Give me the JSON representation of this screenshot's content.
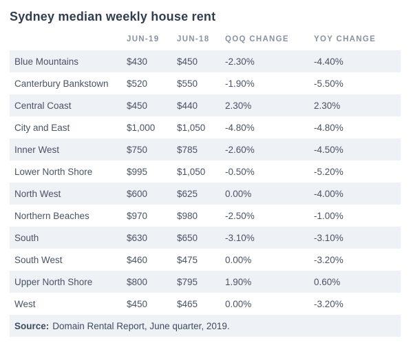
{
  "title": "Sydney median weekly house rent",
  "chart_data": {
    "type": "table",
    "title": "Sydney median weekly house rent",
    "columns": {
      "region": "",
      "jun19": "JUN-19",
      "jun18": "JUN-18",
      "qoq": "QOQ CHANGE",
      "yoy": "YOY CHANGE"
    },
    "rows": [
      {
        "region": "Blue Mountains",
        "jun19": "$430",
        "jun18": "$450",
        "qoq": "-2.30%",
        "yoy": "-4.40%"
      },
      {
        "region": "Canterbury Bankstown",
        "jun19": "$520",
        "jun18": "$550",
        "qoq": "-1.90%",
        "yoy": "-5.50%"
      },
      {
        "region": "Central Coast",
        "jun19": "$450",
        "jun18": "$440",
        "qoq": "2.30%",
        "yoy": "2.30%"
      },
      {
        "region": "City and East",
        "jun19": "$1,000",
        "jun18": "$1,050",
        "qoq": "-4.80%",
        "yoy": "-4.80%"
      },
      {
        "region": "Inner West",
        "jun19": "$750",
        "jun18": "$785",
        "qoq": "-2.60%",
        "yoy": "-4.50%"
      },
      {
        "region": "Lower North Shore",
        "jun19": "$995",
        "jun18": "$1,050",
        "qoq": "-0.50%",
        "yoy": "-5.20%"
      },
      {
        "region": "North West",
        "jun19": "$600",
        "jun18": "$625",
        "qoq": "0.00%",
        "yoy": "-4.00%"
      },
      {
        "region": "Northern Beaches",
        "jun19": "$970",
        "jun18": "$980",
        "qoq": "-2.50%",
        "yoy": "-1.00%"
      },
      {
        "region": "South",
        "jun19": "$630",
        "jun18": "$650",
        "qoq": "-3.10%",
        "yoy": "-3.10%"
      },
      {
        "region": "South West",
        "jun19": "$460",
        "jun18": "$475",
        "qoq": "0.00%",
        "yoy": "-3.20%"
      },
      {
        "region": "Upper North Shore",
        "jun19": "$800",
        "jun18": "$795",
        "qoq": "1.90%",
        "yoy": "0.60%"
      },
      {
        "region": "West",
        "jun19": "$450",
        "jun18": "$465",
        "qoq": "0.00%",
        "yoy": "-3.20%"
      }
    ],
    "source": "Source: Domain Rental Report, June quarter, 2019."
  },
  "footer": {
    "source_label": "Source:",
    "source_text": "Domain Rental Report, June quarter, 2019."
  },
  "colors": {
    "stripe": "#eef1f5",
    "title_text": "#333d50",
    "header_text": "#8a91a0",
    "body_text": "#4a5263",
    "background": "#ffffff"
  }
}
